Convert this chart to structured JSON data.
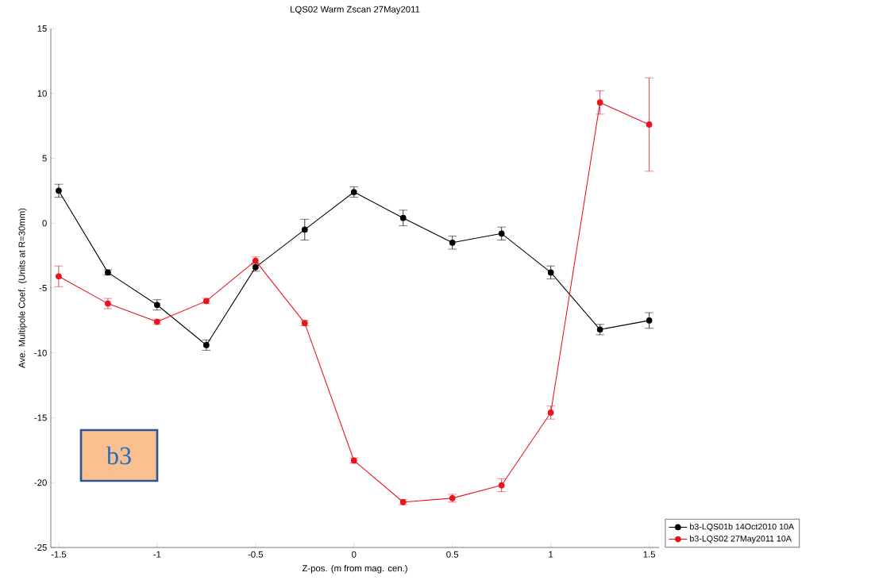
{
  "chart_data": {
    "type": "line",
    "title": "LQS02 Warm Zscan 27May2011",
    "xlabel": "Z-pos. (m from mag. cen.)",
    "ylabel": "Ave. Multipole Coef. (Units at R=30mm)",
    "x": [
      -1.5,
      -1.25,
      -1,
      -0.75,
      -0.5,
      -0.25,
      0,
      0.25,
      0.5,
      0.75,
      1,
      1.25,
      1.5
    ],
    "series": [
      {
        "name": "b3-LQS01b 14Oct2010 10A",
        "color": "#000000",
        "values": [
          2.5,
          -3.8,
          -6.3,
          -9.4,
          -3.4,
          -0.5,
          2.4,
          0.4,
          -1.5,
          -0.8,
          -3.8,
          -8.2,
          -7.5
        ],
        "errors": [
          0.5,
          0.2,
          0.4,
          0.4,
          0.3,
          0.8,
          0.4,
          0.6,
          0.5,
          0.5,
          0.5,
          0.4,
          0.6
        ]
      },
      {
        "name": "b3-LQS02  27May2011 10A",
        "color": "#e8141c",
        "values": [
          -4.1,
          -6.2,
          -7.6,
          -6.0,
          -2.9,
          -7.7,
          -18.3,
          -21.5,
          -21.2,
          -20.2,
          -14.6,
          9.3,
          7.6
        ],
        "errors": [
          0.8,
          0.4,
          0.2,
          0.2,
          0.3,
          0.2,
          0.2,
          0.2,
          0.3,
          0.5,
          0.5,
          0.9,
          3.6
        ]
      }
    ],
    "xlim": [
      -1.54,
      1.55
    ],
    "ylim": [
      -25,
      15
    ],
    "xticks": [
      -1.5,
      -1,
      -0.5,
      0,
      0.5,
      1,
      1.5
    ],
    "yticks": [
      -25,
      -20,
      -15,
      -10,
      -5,
      0,
      5,
      10,
      15
    ],
    "annotations": [
      "b3"
    ],
    "marker": "circle",
    "legend": "bottom right",
    "grid": false
  }
}
